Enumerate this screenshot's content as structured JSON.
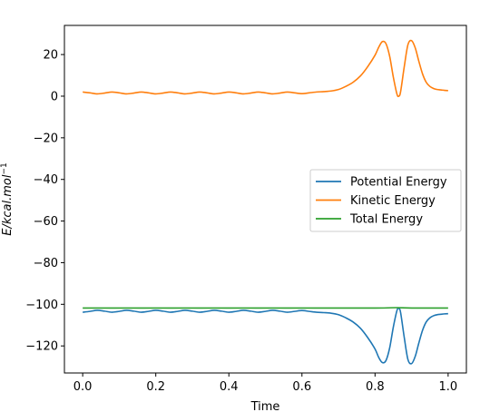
{
  "chart_data": {
    "type": "line",
    "xlabel": "Time",
    "ylabel": "E/kcal.mol",
    "ylabel_superscript": "−1",
    "xlim": [
      -0.05,
      1.05
    ],
    "ylim": [
      -133,
      34
    ],
    "xticks": [
      0.0,
      0.2,
      0.4,
      0.6,
      0.8,
      1.0
    ],
    "xtick_labels": [
      "0.0",
      "0.2",
      "0.4",
      "0.6",
      "0.8",
      "1.0"
    ],
    "yticks": [
      20,
      0,
      -20,
      -40,
      -60,
      -80,
      -100,
      -120
    ],
    "ytick_labels": [
      "20",
      "0",
      "−20",
      "−40",
      "−60",
      "−80",
      "−100",
      "−120"
    ],
    "grid": false,
    "legend_position": "center-right",
    "series": [
      {
        "name": "Potential Energy",
        "color": "#1f77b4",
        "x": [
          0.0,
          0.02,
          0.04,
          0.06,
          0.08,
          0.1,
          0.12,
          0.14,
          0.16,
          0.18,
          0.2,
          0.22,
          0.24,
          0.26,
          0.28,
          0.3,
          0.32,
          0.34,
          0.36,
          0.38,
          0.4,
          0.42,
          0.44,
          0.46,
          0.48,
          0.5,
          0.52,
          0.54,
          0.56,
          0.58,
          0.6,
          0.62,
          0.64,
          0.66,
          0.68,
          0.7,
          0.72,
          0.74,
          0.76,
          0.78,
          0.8,
          0.81,
          0.82,
          0.83,
          0.84,
          0.85,
          0.86,
          0.865,
          0.87,
          0.88,
          0.89,
          0.9,
          0.91,
          0.92,
          0.93,
          0.94,
          0.95,
          0.96,
          0.97,
          0.98,
          0.99,
          1.0
        ],
        "y": [
          -103.8,
          -103.4,
          -102.9,
          -103.3,
          -103.8,
          -103.4,
          -102.9,
          -103.3,
          -103.8,
          -103.4,
          -102.9,
          -103.3,
          -103.8,
          -103.4,
          -102.9,
          -103.3,
          -103.8,
          -103.4,
          -102.9,
          -103.3,
          -103.8,
          -103.4,
          -102.9,
          -103.3,
          -103.8,
          -103.4,
          -102.9,
          -103.3,
          -103.8,
          -103.4,
          -103.0,
          -103.4,
          -103.8,
          -104.0,
          -104.3,
          -105.0,
          -106.5,
          -108.5,
          -111.5,
          -116.0,
          -121.5,
          -125.5,
          -128.0,
          -127.0,
          -121.0,
          -111.0,
          -103.0,
          -102.0,
          -104.0,
          -116.0,
          -126.5,
          -128.5,
          -125.0,
          -118.5,
          -112.5,
          -108.5,
          -106.5,
          -105.5,
          -105.0,
          -104.8,
          -104.6,
          -104.5
        ]
      },
      {
        "name": "Kinetic Energy",
        "color": "#ff7f0e",
        "x": [
          0.0,
          0.02,
          0.04,
          0.06,
          0.08,
          0.1,
          0.12,
          0.14,
          0.16,
          0.18,
          0.2,
          0.22,
          0.24,
          0.26,
          0.28,
          0.3,
          0.32,
          0.34,
          0.36,
          0.38,
          0.4,
          0.42,
          0.44,
          0.46,
          0.48,
          0.5,
          0.52,
          0.54,
          0.56,
          0.58,
          0.6,
          0.62,
          0.64,
          0.66,
          0.68,
          0.7,
          0.72,
          0.74,
          0.76,
          0.78,
          0.8,
          0.81,
          0.82,
          0.83,
          0.84,
          0.85,
          0.86,
          0.865,
          0.87,
          0.88,
          0.89,
          0.9,
          0.91,
          0.92,
          0.93,
          0.94,
          0.95,
          0.96,
          0.97,
          0.98,
          0.99,
          1.0
        ],
        "y": [
          2.0,
          1.6,
          1.1,
          1.5,
          2.0,
          1.6,
          1.1,
          1.5,
          2.0,
          1.6,
          1.1,
          1.5,
          2.0,
          1.6,
          1.1,
          1.5,
          2.0,
          1.6,
          1.1,
          1.5,
          2.0,
          1.6,
          1.1,
          1.5,
          2.0,
          1.6,
          1.1,
          1.5,
          2.0,
          1.6,
          1.2,
          1.6,
          2.0,
          2.2,
          2.5,
          3.2,
          4.7,
          6.7,
          9.7,
          14.2,
          19.7,
          23.5,
          26.2,
          25.2,
          19.2,
          9.2,
          1.0,
          0.0,
          2.2,
          14.2,
          24.7,
          26.7,
          23.2,
          16.7,
          10.7,
          6.7,
          4.7,
          3.7,
          3.2,
          3.0,
          2.8,
          2.7
        ]
      },
      {
        "name": "Total Energy",
        "color": "#2ca02c",
        "x": [
          0.0,
          0.2,
          0.4,
          0.6,
          0.8,
          0.86,
          0.9,
          1.0
        ],
        "y": [
          -101.8,
          -101.8,
          -101.8,
          -101.8,
          -101.8,
          -101.6,
          -101.8,
          -101.8
        ]
      }
    ]
  }
}
